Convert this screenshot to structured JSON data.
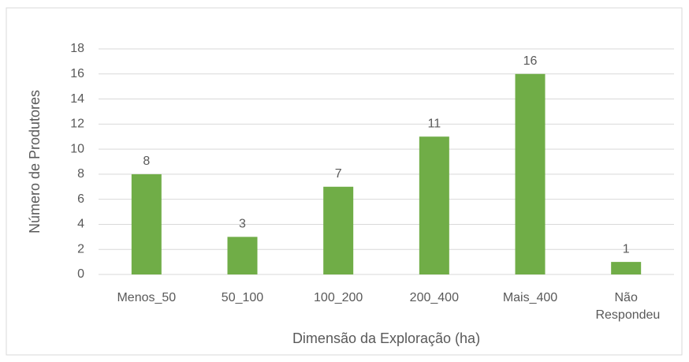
{
  "chart_data": {
    "type": "bar",
    "x_label": "Dimensão da Exploração (ha)",
    "y_label": "Número de Produtores",
    "categories": [
      "Menos_50",
      "50_100",
      "100_200",
      "200_400",
      "Mais_400",
      "Não Respondeu"
    ],
    "values": [
      8,
      3,
      7,
      11,
      16,
      1
    ],
    "color": "#70ad47",
    "ylim": [
      0,
      18
    ],
    "yticks": [
      0,
      2,
      4,
      6,
      8,
      10,
      12,
      14,
      16,
      18
    ],
    "grid": true
  }
}
